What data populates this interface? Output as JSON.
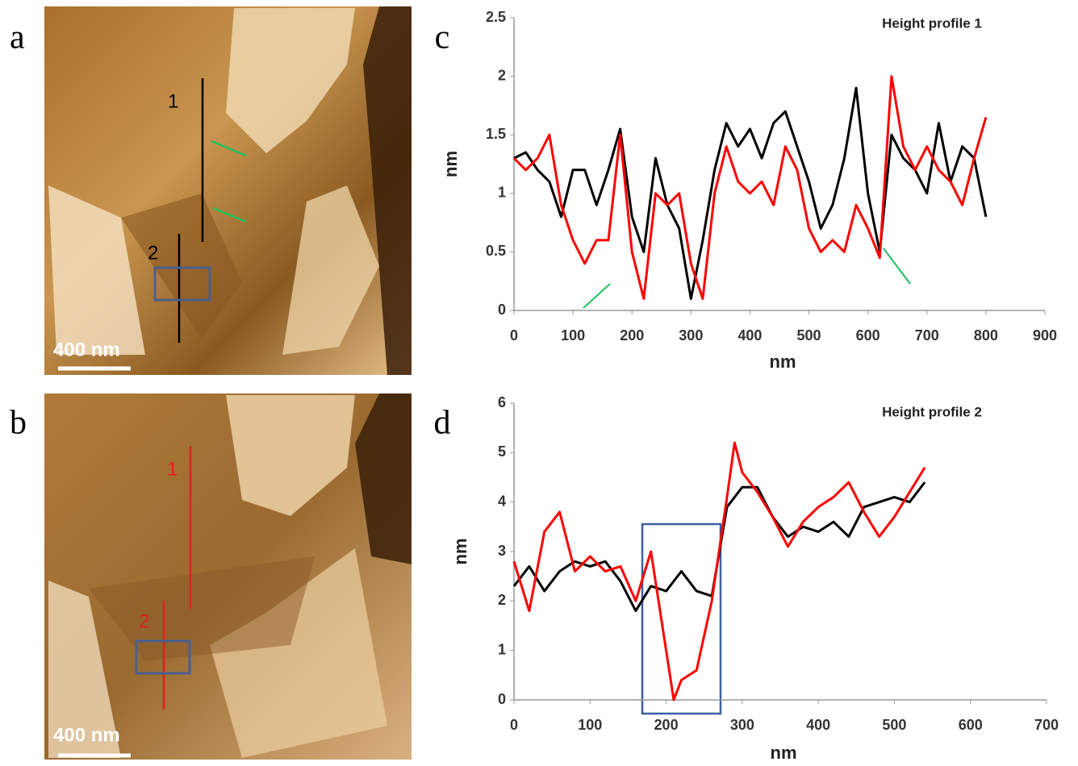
{
  "images": [
    {
      "panel": "a",
      "scale_bar": "400 nm",
      "lines": [
        "1",
        "2"
      ]
    },
    {
      "panel": "b",
      "scale_bar": "400 nm",
      "lines": [
        "1",
        "2"
      ]
    }
  ],
  "chart_data": [
    {
      "type": "line",
      "panel": "c",
      "annotation": "Height profile 1",
      "xlabel": "nm",
      "ylabel": "nm",
      "xlim": [
        0,
        900
      ],
      "xticks": [
        0,
        100,
        200,
        300,
        400,
        500,
        600,
        700,
        800,
        900
      ],
      "ylim": [
        0,
        2.5
      ],
      "yticks": [
        0,
        0.5,
        1,
        1.5,
        2,
        2.5
      ],
      "series": [
        {
          "color": "#000000",
          "x": [
            0,
            20,
            40,
            60,
            80,
            100,
            120,
            140,
            160,
            180,
            200,
            220,
            240,
            260,
            280,
            300,
            320,
            340,
            360,
            380,
            400,
            420,
            440,
            460,
            480,
            500,
            520,
            540,
            560,
            580,
            600,
            620,
            640,
            660,
            680,
            700,
            720,
            740,
            760,
            780,
            800
          ],
          "values": [
            1.3,
            1.35,
            1.2,
            1.1,
            0.8,
            1.2,
            1.2,
            0.9,
            1.2,
            1.55,
            0.8,
            0.5,
            1.3,
            0.9,
            0.7,
            0.1,
            0.6,
            1.2,
            1.6,
            1.4,
            1.55,
            1.3,
            1.6,
            1.7,
            1.4,
            1.1,
            0.7,
            0.9,
            1.3,
            1.9,
            1.0,
            0.5,
            1.5,
            1.3,
            1.2,
            1.0,
            1.6,
            1.1,
            1.4,
            1.3,
            0.8
          ]
        },
        {
          "color": "#ff0000",
          "x": [
            0,
            20,
            40,
            60,
            80,
            100,
            120,
            140,
            160,
            180,
            200,
            220,
            240,
            260,
            280,
            300,
            320,
            340,
            360,
            380,
            400,
            420,
            440,
            460,
            480,
            500,
            520,
            540,
            560,
            580,
            600,
            620,
            640,
            660,
            680,
            700,
            720,
            740,
            760,
            780,
            800
          ],
          "values": [
            1.3,
            1.2,
            1.3,
            1.5,
            0.9,
            0.6,
            0.4,
            0.6,
            0.6,
            1.5,
            0.5,
            0.1,
            1.0,
            0.9,
            1.0,
            0.4,
            0.1,
            1.0,
            1.4,
            1.1,
            1.0,
            1.1,
            0.9,
            1.4,
            1.2,
            0.7,
            0.5,
            0.6,
            0.5,
            0.9,
            0.7,
            0.45,
            2.0,
            1.4,
            1.2,
            1.4,
            1.2,
            1.1,
            0.9,
            1.3,
            1.65
          ]
        }
      ]
    },
    {
      "type": "line",
      "panel": "d",
      "annotation": "Height profile 2",
      "xlabel": "nm",
      "ylabel": "nm",
      "xlim": [
        0,
        700
      ],
      "xticks": [
        0,
        100,
        200,
        300,
        400,
        500,
        600,
        700
      ],
      "ylim": [
        0,
        6
      ],
      "yticks": [
        0,
        1,
        2,
        3,
        4,
        5,
        6
      ],
      "series": [
        {
          "color": "#000000",
          "x": [
            0,
            20,
            40,
            60,
            80,
            100,
            120,
            140,
            160,
            180,
            200,
            220,
            240,
            260,
            280,
            300,
            320,
            340,
            360,
            380,
            400,
            420,
            440,
            460,
            480,
            500,
            520,
            540
          ],
          "values": [
            2.3,
            2.7,
            2.2,
            2.6,
            2.8,
            2.7,
            2.8,
            2.4,
            1.8,
            2.3,
            2.2,
            2.6,
            2.2,
            2.1,
            3.9,
            4.3,
            4.3,
            3.7,
            3.3,
            3.5,
            3.4,
            3.6,
            3.3,
            3.9,
            4.0,
            4.1,
            4.0,
            4.4
          ]
        },
        {
          "color": "#ff0000",
          "x": [
            0,
            20,
            40,
            60,
            80,
            100,
            120,
            140,
            160,
            180,
            200,
            210,
            220,
            240,
            260,
            280,
            290,
            300,
            320,
            340,
            360,
            380,
            400,
            420,
            440,
            460,
            480,
            500,
            520,
            540
          ],
          "values": [
            2.8,
            1.8,
            3.4,
            3.8,
            2.6,
            2.9,
            2.6,
            2.7,
            2.0,
            3.0,
            1.0,
            0,
            0.4,
            0.6,
            2.0,
            4.1,
            5.2,
            4.6,
            4.2,
            3.7,
            3.1,
            3.6,
            3.9,
            4.1,
            4.4,
            3.8,
            3.3,
            3.7,
            4.2,
            4.7
          ]
        }
      ]
    }
  ]
}
